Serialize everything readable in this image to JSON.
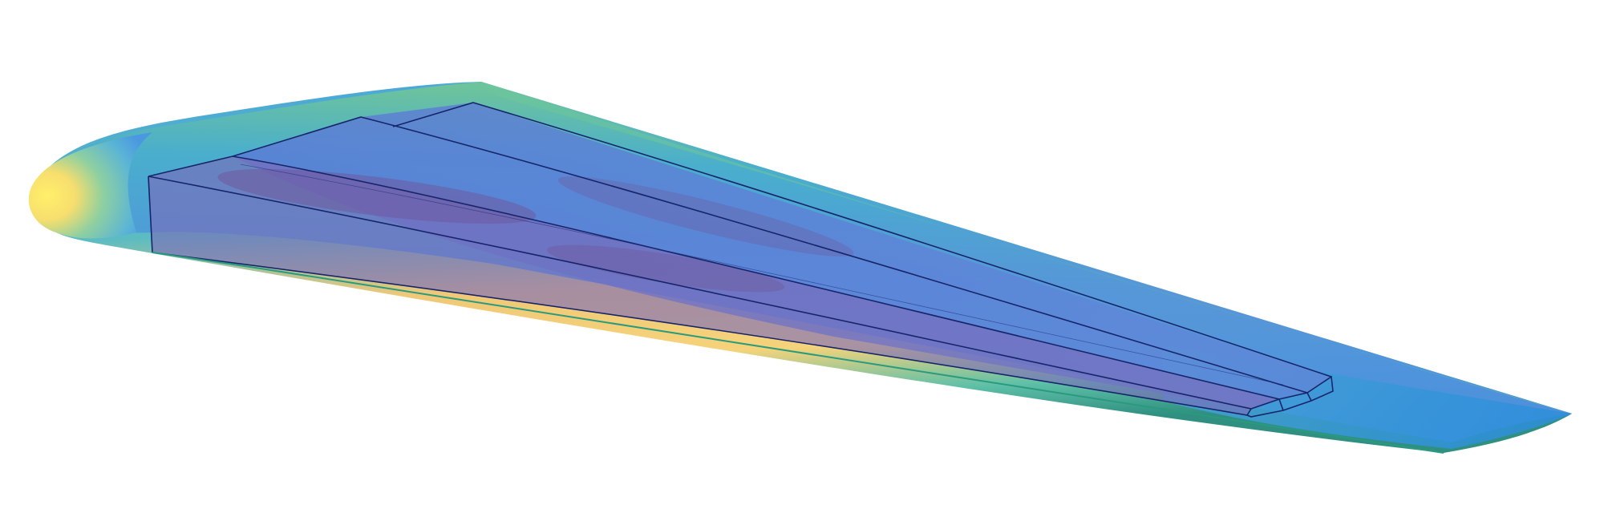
{
  "scene": {
    "subject": "wing-surface-render",
    "background_color": "#ffffff",
    "colormap": {
      "low": "#3a7fdc",
      "mid_low": "#3fb8c8",
      "mid": "#6cc48a",
      "high": "#f2d470",
      "peak": "#fde86a"
    },
    "box_fill": "#5f62c4",
    "box_edge": "#16256a",
    "low_region_fill": "#6e5a9e"
  }
}
